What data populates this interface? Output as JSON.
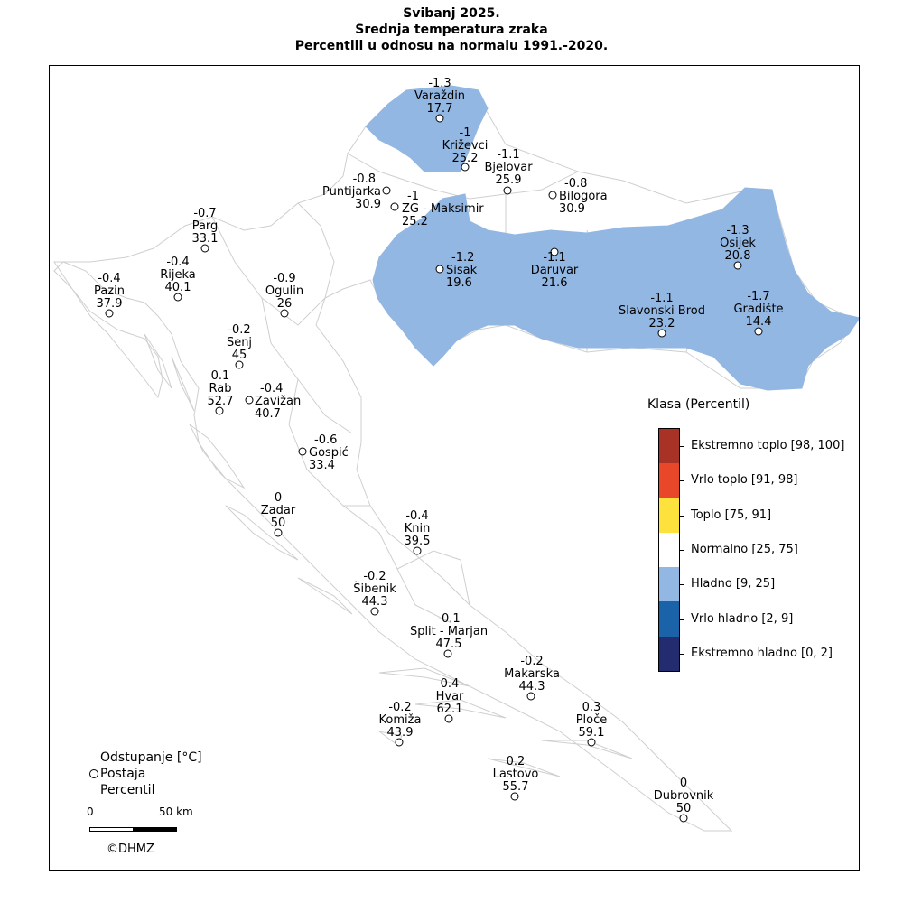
{
  "title": {
    "line1": "Svibanj 2025.",
    "line2": "Srednja temperatura zraka",
    "line3": "Percentili u odnosu na normalu 1991.-2020."
  },
  "legend": {
    "title": "Klasa (Percentil)",
    "classes": [
      {
        "label": "Ekstremno toplo [98, 100]",
        "color": "#a93226"
      },
      {
        "label": "Vrlo toplo [91, 98]",
        "color": "#e8472a"
      },
      {
        "label": "Toplo [75, 91]",
        "color": "#fde13d"
      },
      {
        "label": "Normalno [25, 75]",
        "color": "#ffffff"
      },
      {
        "label": "Hladno [9, 25]",
        "color": "#93b7e3"
      },
      {
        "label": "Vrlo hladno [2, 9]",
        "color": "#1a63a8"
      },
      {
        "label": "Ekstremno hladno [0, 2]",
        "color": "#232c6e"
      }
    ]
  },
  "info": {
    "line1": "Odstupanje [°C]",
    "line2": "Postaja",
    "line3": "Percentil"
  },
  "scale": {
    "start": "0",
    "end": "50 km"
  },
  "credit": "©DHMZ",
  "colors": {
    "cold": "#93b7e3",
    "border": "#cfcfcf"
  },
  "stations": [
    {
      "name": "Varaždin",
      "anomaly": "-1.3",
      "percentile": "17.7"
    },
    {
      "name": "Križevci",
      "anomaly": "-1",
      "percentile": "25.2"
    },
    {
      "name": "Bjelovar",
      "anomaly": "-1.1",
      "percentile": "25.9"
    },
    {
      "name": "Bilogora",
      "anomaly": "-0.8",
      "percentile": "30.9"
    },
    {
      "name": "Puntijarka",
      "anomaly": "-0.8",
      "percentile": "30.9"
    },
    {
      "name": "ZG - Maksimir",
      "anomaly": "-1",
      "percentile": "25.2"
    },
    {
      "name": "Parg",
      "anomaly": "-0.7",
      "percentile": "33.1"
    },
    {
      "name": "Osijek",
      "anomaly": "-1.3",
      "percentile": "20.8"
    },
    {
      "name": "Sisak",
      "anomaly": "-1.2",
      "percentile": "19.6"
    },
    {
      "name": "Daruvar",
      "anomaly": "-1.1",
      "percentile": "21.6"
    },
    {
      "name": "Rijeka",
      "anomaly": "-0.4",
      "percentile": "40.1"
    },
    {
      "name": "Pazin",
      "anomaly": "-0.4",
      "percentile": "37.9"
    },
    {
      "name": "Ogulin",
      "anomaly": "-0.9",
      "percentile": "26"
    },
    {
      "name": "Slavonski Brod",
      "anomaly": "-1.1",
      "percentile": "23.2"
    },
    {
      "name": "Gradište",
      "anomaly": "-1.7",
      "percentile": "14.4"
    },
    {
      "name": "Senj",
      "anomaly": "-0.2",
      "percentile": "45"
    },
    {
      "name": "Rab",
      "anomaly": "0.1",
      "percentile": "52.7"
    },
    {
      "name": "Zavižan",
      "anomaly": "-0.4",
      "percentile": "40.7"
    },
    {
      "name": "Gospić",
      "anomaly": "-0.6",
      "percentile": "33.4"
    },
    {
      "name": "Zadar",
      "anomaly": "0",
      "percentile": "50"
    },
    {
      "name": "Knin",
      "anomaly": "-0.4",
      "percentile": "39.5"
    },
    {
      "name": "Šibenik",
      "anomaly": "-0.2",
      "percentile": "44.3"
    },
    {
      "name": "Split - Marjan",
      "anomaly": "-0.1",
      "percentile": "47.5"
    },
    {
      "name": "Makarska",
      "anomaly": "-0.2",
      "percentile": "44.3"
    },
    {
      "name": "Hvar",
      "anomaly": "0.4",
      "percentile": "62.1"
    },
    {
      "name": "Komiža",
      "anomaly": "-0.2",
      "percentile": "43.9"
    },
    {
      "name": "Ploče",
      "anomaly": "0.3",
      "percentile": "59.1"
    },
    {
      "name": "Lastovo",
      "anomaly": "0.2",
      "percentile": "55.7"
    },
    {
      "name": "Dubrovnik",
      "anomaly": "0",
      "percentile": "50"
    }
  ]
}
